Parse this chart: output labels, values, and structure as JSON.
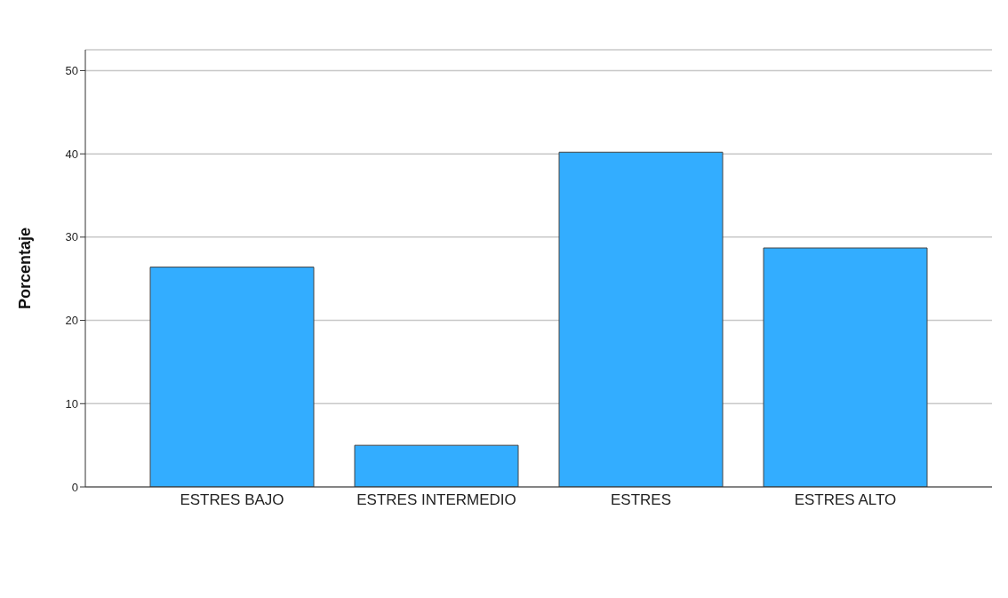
{
  "chart_data": {
    "type": "bar",
    "ylabel": "Porcentaje",
    "categories": [
      "ESTRES BAJO",
      "ESTRES INTERMEDIO",
      "ESTRES",
      "ESTRES ALTO"
    ],
    "values": [
      26.4,
      5.0,
      40.2,
      28.7
    ],
    "color": "#33adff",
    "ylim": [
      0,
      52.5
    ],
    "yticks": [
      0,
      10,
      20,
      30,
      40,
      50
    ],
    "grid": "y"
  }
}
